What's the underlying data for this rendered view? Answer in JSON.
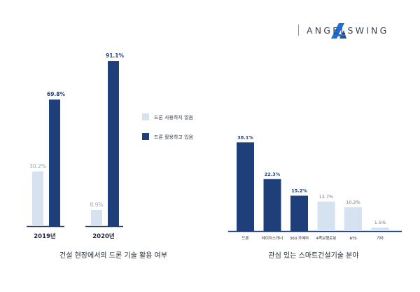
{
  "brand": {
    "name": "ANGELSWING",
    "accent": "#1f6fd0",
    "logo-icon": "angelswing-a-logo"
  },
  "colors": {
    "navy": "#1f3f7a",
    "light": "#d6e2ef",
    "axis": "#1f3f7a"
  },
  "chart_data": [
    {
      "type": "bar",
      "title": "건설 현장에서의 드론 기술 활용 여부",
      "categories": [
        "2019년",
        "2020년"
      ],
      "series": [
        {
          "name": "드론 사용하지 않음",
          "values": [
            30.2,
            8.9
          ],
          "labels": [
            "30.2%",
            "8.9%"
          ],
          "color": "#d6e2ef"
        },
        {
          "name": "드론 활용하고 있음",
          "values": [
            69.8,
            91.1
          ],
          "labels": [
            "69.8%",
            "91.1%"
          ],
          "color": "#1f3f7a"
        }
      ],
      "ylim": [
        0,
        100
      ],
      "legend": "right"
    },
    {
      "type": "bar",
      "title": "관심 있는 스마트건설기술 분야",
      "categories": [
        "드론",
        "레이저스캐너",
        "360 카메라",
        "4족보행로봇",
        "RTS",
        "기타"
      ],
      "values": [
        38.1,
        22.3,
        15.2,
        12.7,
        10.2,
        1.5
      ],
      "labels": [
        "38.1%",
        "22.3%",
        "15.2%",
        "12.7%",
        "10.2%",
        "1.5%"
      ],
      "highlight": [
        true,
        true,
        true,
        false,
        false,
        false
      ],
      "ylim": [
        0,
        40
      ]
    }
  ]
}
